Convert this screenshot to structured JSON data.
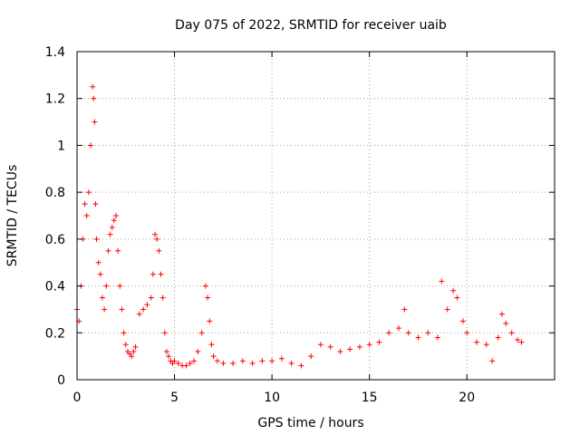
{
  "chart_data": {
    "type": "scatter",
    "title": "Day 075 of 2022, SRMTID for receiver uaib",
    "xlabel": "GPS time / hours",
    "ylabel": "SRMTID / TECUs",
    "xlim": [
      0,
      24.5
    ],
    "ylim": [
      0,
      1.4
    ],
    "xticks": [
      0,
      5,
      10,
      15,
      20
    ],
    "xtick_labels": [
      "0",
      "5",
      "10",
      "15",
      "20"
    ],
    "yticks": [
      0,
      0.2,
      0.4,
      0.6,
      0.8,
      1.0,
      1.2,
      1.4
    ],
    "ytick_labels": [
      "0",
      "0.2",
      "0.4",
      "0.6",
      "0.8",
      "1",
      "1.2",
      "1.4"
    ],
    "grid": true,
    "marker": "+",
    "color": "#ff0000",
    "series": [
      {
        "name": "SRMTID",
        "x": [
          0.0,
          0.1,
          0.2,
          0.3,
          0.4,
          0.5,
          0.6,
          0.7,
          0.8,
          0.85,
          0.9,
          0.95,
          1.0,
          1.1,
          1.2,
          1.3,
          1.4,
          1.5,
          1.6,
          1.7,
          1.8,
          1.9,
          2.0,
          2.1,
          2.2,
          2.3,
          2.4,
          2.5,
          2.6,
          2.7,
          2.8,
          2.9,
          3.0,
          3.2,
          3.4,
          3.6,
          3.8,
          3.9,
          4.0,
          4.1,
          4.2,
          4.3,
          4.4,
          4.5,
          4.6,
          4.7,
          4.8,
          4.9,
          5.0,
          5.2,
          5.4,
          5.6,
          5.8,
          6.0,
          6.2,
          6.4,
          6.6,
          6.7,
          6.8,
          6.9,
          7.0,
          7.2,
          7.5,
          8.0,
          8.5,
          9.0,
          9.5,
          10.0,
          10.5,
          11.0,
          11.5,
          12.0,
          12.5,
          13.0,
          13.5,
          14.0,
          14.5,
          15.0,
          15.5,
          16.0,
          16.5,
          16.8,
          17.0,
          17.5,
          18.0,
          18.5,
          18.7,
          19.0,
          19.3,
          19.5,
          19.8,
          20.0,
          20.5,
          21.0,
          21.3,
          21.6,
          21.8,
          22.0,
          22.3,
          22.6,
          22.8
        ],
        "values": [
          0.3,
          0.25,
          0.4,
          0.6,
          0.75,
          0.7,
          0.8,
          1.0,
          1.25,
          1.2,
          1.1,
          0.75,
          0.6,
          0.5,
          0.45,
          0.35,
          0.3,
          0.4,
          0.55,
          0.62,
          0.65,
          0.68,
          0.7,
          0.55,
          0.4,
          0.3,
          0.2,
          0.15,
          0.12,
          0.11,
          0.1,
          0.12,
          0.14,
          0.28,
          0.3,
          0.32,
          0.35,
          0.45,
          0.62,
          0.6,
          0.55,
          0.45,
          0.35,
          0.2,
          0.12,
          0.1,
          0.08,
          0.07,
          0.08,
          0.07,
          0.06,
          0.06,
          0.07,
          0.08,
          0.12,
          0.2,
          0.4,
          0.35,
          0.25,
          0.15,
          0.1,
          0.08,
          0.07,
          0.07,
          0.08,
          0.07,
          0.08,
          0.08,
          0.09,
          0.07,
          0.06,
          0.1,
          0.15,
          0.14,
          0.12,
          0.13,
          0.14,
          0.15,
          0.16,
          0.2,
          0.22,
          0.3,
          0.2,
          0.18,
          0.2,
          0.18,
          0.42,
          0.3,
          0.38,
          0.35,
          0.25,
          0.2,
          0.16,
          0.15,
          0.08,
          0.18,
          0.28,
          0.24,
          0.2,
          0.17,
          0.16
        ]
      }
    ]
  }
}
